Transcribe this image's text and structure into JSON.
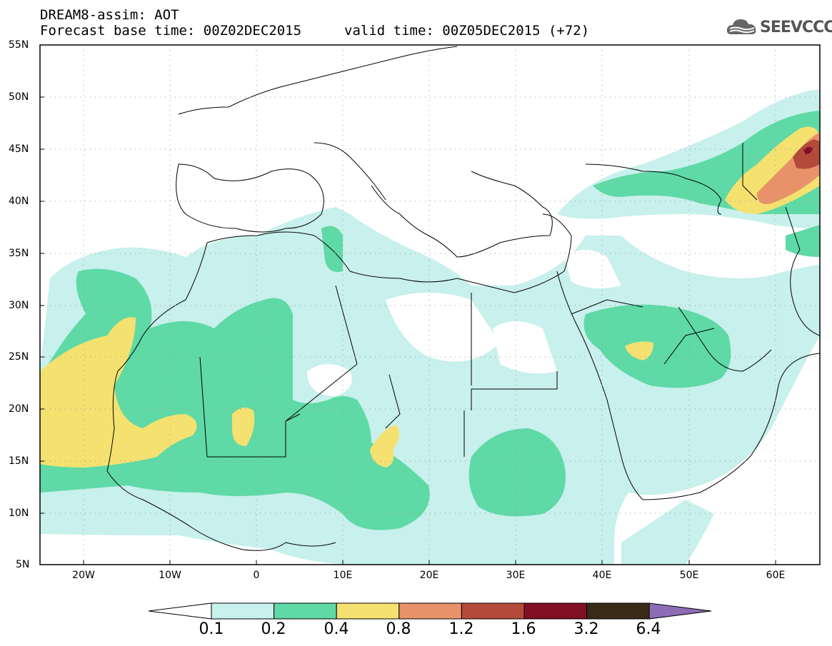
{
  "header": {
    "title": "DREAM8-assim: AOT",
    "forecast_base": "Forecast base time: 00Z02DEC2015",
    "valid_time": "valid time: 00Z05DEC2015 (+72)",
    "logo_text": "SEEVCCC"
  },
  "axes": {
    "lat_labels": [
      "55N",
      "50N",
      "45N",
      "40N",
      "35N",
      "30N",
      "25N",
      "20N",
      "15N",
      "10N",
      "5N"
    ],
    "lon_labels": [
      "20W",
      "10W",
      "0",
      "10E",
      "20E",
      "30E",
      "40E",
      "50E",
      "60E"
    ],
    "lat_range": [
      5,
      55
    ],
    "lon_range": [
      -25,
      65
    ]
  },
  "colorbar": {
    "labels": [
      "0.1",
      "0.2",
      "0.4",
      "0.8",
      "1.2",
      "1.6",
      "3.2",
      "6.4"
    ],
    "colors": [
      "#c8f0ec",
      "#5fd9a6",
      "#f4e170",
      "#e8926a",
      "#b44a3a",
      "#820e24",
      "#3a2a18"
    ],
    "over_color": "#8c6cb4",
    "under_color": "#ffffff"
  }
}
